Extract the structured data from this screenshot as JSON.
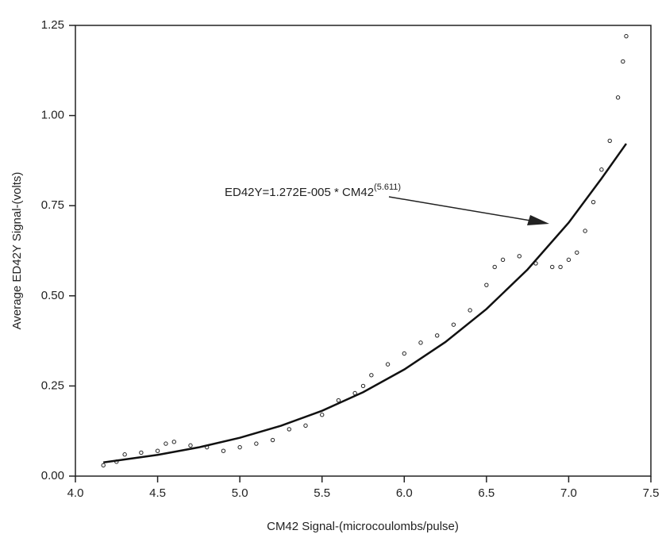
{
  "chart_data": {
    "type": "scatter",
    "x_label": "CM42 Signal-(microcoulombs/pulse)",
    "y_label": "Average ED42Y Signal-(volts)",
    "annotation": {
      "text": "ED42Y=1.272E-005 * CM42",
      "superscript": "(5.611)"
    },
    "xlim": [
      4.0,
      7.5
    ],
    "ylim": [
      0,
      1.25
    ],
    "xticks": [
      {
        "value": 4,
        "label": "4.0"
      },
      4.5,
      {
        "value": 5,
        "label": "5.0"
      },
      5.5,
      {
        "value": 6,
        "label": "6.0"
      },
      6.5,
      {
        "value": 7,
        "label": "7.0"
      },
      7.5
    ],
    "yticks": [
      {
        "value": 0,
        "label": "0.00"
      },
      {
        "value": 0.25,
        "label": "0.25"
      },
      {
        "value": 0.5,
        "label": "0.50"
      },
      {
        "value": 0.75,
        "label": "0.75"
      },
      {
        "value": 1,
        "label": "1.00"
      },
      {
        "value": 1.25,
        "label": "1.25"
      }
    ],
    "series": [
      {
        "kind": "points",
        "color": "#222222",
        "x": [
          4.17,
          4.25,
          4.3,
          4.4,
          4.5,
          4.55,
          4.6,
          4.7,
          4.8,
          4.9,
          5.0,
          5.1,
          5.2,
          5.3,
          5.4,
          5.5,
          5.6,
          5.7,
          5.75,
          5.8,
          5.9,
          6.0,
          6.1,
          6.2,
          6.3,
          6.4,
          6.5,
          6.55,
          6.6,
          6.7,
          6.8,
          6.9,
          6.95,
          7.0,
          7.05,
          7.1,
          7.15,
          7.2,
          7.25,
          7.3,
          7.33,
          7.35
        ],
        "values": [
          0.03,
          0.04,
          0.06,
          0.065,
          0.07,
          0.09,
          0.095,
          0.085,
          0.08,
          0.07,
          0.08,
          0.09,
          0.1,
          0.13,
          0.14,
          0.17,
          0.21,
          0.23,
          0.25,
          0.28,
          0.31,
          0.34,
          0.37,
          0.39,
          0.42,
          0.46,
          0.53,
          0.58,
          0.6,
          0.61,
          0.59,
          0.58,
          0.58,
          0.6,
          0.62,
          0.68,
          0.76,
          0.85,
          0.93,
          1.05,
          1.15,
          1.22
        ]
      },
      {
        "kind": "line",
        "color": "#111111",
        "x": [
          4.17,
          4.5,
          4.75,
          5.0,
          5.25,
          5.5,
          5.75,
          6.0,
          6.25,
          6.5,
          6.75,
          7.0,
          7.2,
          7.35
        ],
        "values": [
          0.038,
          0.0589,
          0.0797,
          0.1063,
          0.1397,
          0.1812,
          0.2327,
          0.2957,
          0.3718,
          0.4634,
          0.573,
          0.7029,
          0.8255,
          0.922
        ]
      }
    ]
  }
}
